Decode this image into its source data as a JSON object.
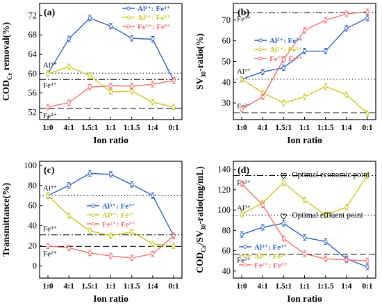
{
  "chart_data": [
    {
      "type": "line",
      "panel_label": "(a)",
      "xlabel": "Ion ratio",
      "ylabel_main": "COD",
      "ylabel_sub": "Cr",
      "ylabel_tail": " removal(%)",
      "categories": [
        "1:0",
        "4:1",
        "1.5:1",
        "1:1",
        "1:1.5",
        "1:4",
        "0:1"
      ],
      "yticks": [
        "52",
        "56",
        "60",
        "64",
        "68",
        "72"
      ],
      "ylim": [
        50.5,
        74.5
      ],
      "legend": "top-right",
      "series": [
        {
          "name": "Al³⁺: Fe³⁺",
          "color": "#2e5fc4",
          "values": [
            60.0,
            67.2,
            71.5,
            69.8,
            67.3,
            67.1,
            58.6
          ]
        },
        {
          "name": "Al³⁺: Fe²⁺",
          "color": "#c8c81f",
          "values": [
            60.0,
            61.4,
            59.6,
            56.2,
            56.4,
            54.1,
            53.1
          ]
        },
        {
          "name": "Fe²⁺: Fe³⁺",
          "color": "#f07070",
          "values": [
            53.1,
            54.0,
            57.2,
            57.5,
            57.4,
            57.8,
            58.6
          ]
        }
      ],
      "ref_lines": [
        {
          "label": "Al³⁺",
          "value": 60.1,
          "style": "dotted"
        },
        {
          "label": "Fe³⁺",
          "value": 58.8,
          "style": "dashdot"
        },
        {
          "label": "Fe²⁺",
          "value": 52.8,
          "style": "dashed"
        }
      ]
    },
    {
      "type": "line",
      "panel_label": "(b)",
      "xlabel": "Ion ratio",
      "ylabel_main": "SV",
      "ylabel_sub": "30",
      "ylabel_tail": "-ratio(%)",
      "categories": [
        "1:0",
        "4:1",
        "1.5:1",
        "1:1",
        "1:1.5",
        "1:4",
        "0:1"
      ],
      "yticks": [
        "30",
        "40",
        "50",
        "60",
        "70"
      ],
      "ylim": [
        22,
        78
      ],
      "legend": "center",
      "series": [
        {
          "name": "Al³⁺: Fe³⁺",
          "color": "#2e5fc4",
          "values": [
            41.5,
            45.0,
            47.0,
            55.0,
            55.0,
            66.0,
            71.0
          ]
        },
        {
          "name": "Al³⁺: Fe²⁺",
          "color": "#c8c81f",
          "values": [
            41.5,
            35.0,
            30.0,
            33.0,
            38.0,
            34.0,
            25.0
          ]
        },
        {
          "name": "Fe²⁺: Fe³⁺",
          "color": "#f07070",
          "values": [
            27.0,
            33.0,
            51.0,
            65.0,
            70.0,
            73.0,
            74.0
          ]
        }
      ],
      "ref_lines": [
        {
          "label": "Fe³⁺",
          "value": 73.5,
          "style": "dashdot"
        },
        {
          "label": "Al³⁺",
          "value": 41.5,
          "style": "dotted"
        },
        {
          "label": "Fe²⁺",
          "value": 25.3,
          "style": "dashed"
        }
      ]
    },
    {
      "type": "line",
      "panel_label": "(c)",
      "xlabel": "Ion ratio",
      "ylabel_main": "Transmittance(%)",
      "ylabel_sub": "",
      "ylabel_tail": "",
      "categories": [
        "1:0",
        "4:1",
        "1.5:1",
        "1:1",
        "1:1.5",
        "1:4",
        "0:1"
      ],
      "yticks": [
        "0",
        "20",
        "40",
        "60",
        "80",
        "100"
      ],
      "ylim": [
        -12,
        104
      ],
      "legend": "center-right",
      "series": [
        {
          "name": "Al³⁺: Fe³⁺",
          "color": "#2e5fc4",
          "values": [
            70,
            80,
            92,
            91,
            81,
            70,
            30
          ]
        },
        {
          "name": "Al³⁺: Fe²⁺",
          "color": "#c8c81f",
          "values": [
            70,
            50,
            35,
            30,
            34,
            22,
            20
          ]
        },
        {
          "name": "Fe²⁺: Fe³⁺",
          "color": "#f07070",
          "values": [
            20,
            18,
            13,
            10,
            8,
            12,
            30
          ]
        }
      ],
      "ref_lines": [
        {
          "label": "Al³⁺",
          "value": 70,
          "style": "dotted"
        },
        {
          "label": "Fe³⁺",
          "value": 31,
          "style": "dashdot"
        },
        {
          "label": "Fe²⁺",
          "value": 19.5,
          "style": "dashed"
        }
      ]
    },
    {
      "type": "line",
      "panel_label": "(d)",
      "xlabel": "Ion ratio",
      "ylabel_main": "COD",
      "ylabel_sub": "Cr",
      "ylabel_tail": "/SV",
      "ylabel_sub2": "30",
      "ylabel_tail2": "-ratio(mg/mL)",
      "categories": [
        "1:0",
        "4:1",
        "1.5:1",
        "1:1",
        "1:1.5",
        "1:4",
        "0:1"
      ],
      "yticks": [
        "40",
        "60",
        "80",
        "100",
        "120",
        "140"
      ],
      "ylim": [
        33,
        148
      ],
      "legend": "bottom-left",
      "series": [
        {
          "name": "Al³⁺: Fe³⁺",
          "color": "#2e5fc4",
          "values": [
            76,
            83,
            87,
            73,
            69,
            52,
            44
          ]
        },
        {
          "name": "Al³⁺: Fe²⁺",
          "color": "#c8c81f",
          "values": [
            96,
            107,
            127,
            110,
            95,
            103,
            134
          ]
        },
        {
          "name": "Fe²⁺: Fe³⁺",
          "color": "#f07070",
          "values": [
            126,
            105,
            72,
            57,
            52,
            51,
            50
          ]
        }
      ],
      "ref_lines": [
        {
          "label": "Fe²⁺",
          "value": 134,
          "style": "dashdot"
        },
        {
          "label": "Al³⁺",
          "value": 95,
          "style": "dotted"
        },
        {
          "label": "Fe³⁺",
          "value": 56.5,
          "style": "dashed"
        }
      ],
      "annotations": [
        {
          "text": "Optimal economic point",
          "x_index": 2,
          "y": 127
        },
        {
          "text": "Optimal effluent point",
          "x_index": 2,
          "y": 87
        }
      ]
    }
  ]
}
